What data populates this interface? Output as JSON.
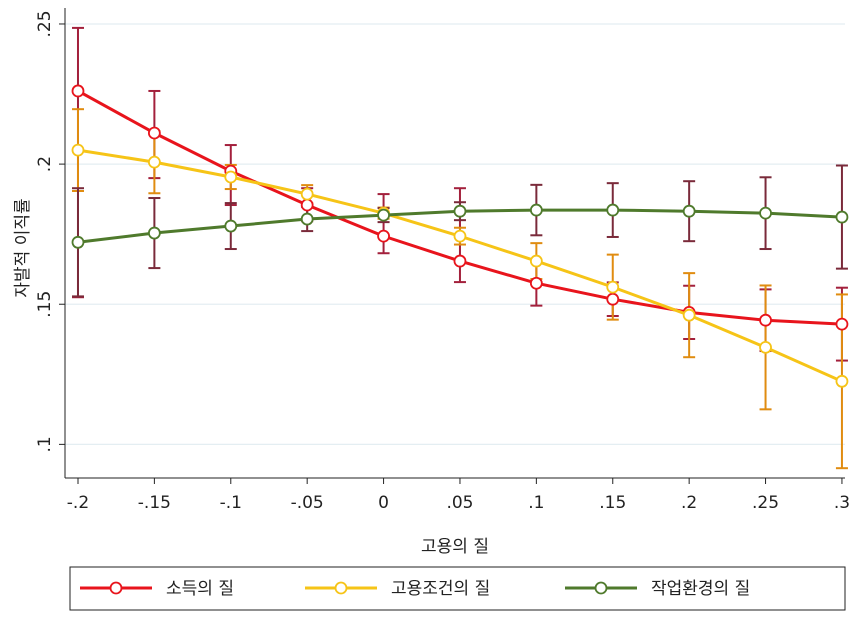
{
  "chart_data": {
    "type": "line",
    "xlabel": "고용의 질",
    "ylabel": "자발적 이직률",
    "x": [
      -0.2,
      -0.15,
      -0.1,
      -0.05,
      0,
      0.05,
      0.1,
      0.15,
      0.2,
      0.25,
      0.3
    ],
    "xlim": [
      -0.2085,
      0.302
    ],
    "ylim": [
      0.088,
      0.2557
    ],
    "xticks": [
      {
        "value": -0.2,
        "label": "-.2"
      },
      {
        "value": -0.15,
        "label": "-.15"
      },
      {
        "value": -0.1,
        "label": "-.1"
      },
      {
        "value": -0.05,
        "label": "-.05"
      },
      0,
      {
        "value": 0.05,
        "label": ".05"
      },
      {
        "value": 0.1,
        "label": ".1"
      },
      {
        "value": 0.15,
        "label": ".15"
      },
      {
        "value": 0.2,
        "label": ".2"
      },
      {
        "value": 0.25,
        "label": ".25"
      },
      {
        "value": 0.3,
        "label": ".3"
      }
    ],
    "yticks": [
      {
        "value": 0.1,
        "label": ".1"
      },
      {
        "value": 0.15,
        "label": ".15"
      },
      {
        "value": 0.2,
        "label": ".2"
      },
      {
        "value": 0.25,
        "label": ".25"
      }
    ],
    "grid": true,
    "series": [
      {
        "name": "소득의 질",
        "color": "#e8141c",
        "ci_color": "#a3203c",
        "values": [
          0.2261,
          0.2111,
          0.1975,
          0.1854,
          0.1743,
          0.1654,
          0.1575,
          0.1518,
          0.1471,
          0.1443,
          0.1429
        ],
        "ci_lower": [
          0.1525,
          0.195,
          0.1854,
          0.1796,
          0.1682,
          0.1579,
          0.1495,
          0.1458,
          0.1376,
          0.1333,
          0.1299
        ],
        "ci_upper": [
          0.2486,
          0.2261,
          0.2068,
          0.1914,
          0.1893,
          0.1914,
          0.1655,
          0.1578,
          0.1566,
          0.1553,
          0.1559
        ]
      },
      {
        "name": "고용조건의 질",
        "color": "#f6c417",
        "ci_color": "#e08c10",
        "values": [
          0.205,
          0.2007,
          0.1954,
          0.1893,
          0.1825,
          0.1743,
          0.1654,
          0.1561,
          0.1461,
          0.1346,
          0.1225
        ],
        "ci_lower": [
          0.1904,
          0.1896,
          0.1911,
          0.1861,
          0.1805,
          0.1713,
          0.159,
          0.1445,
          0.1311,
          0.1125,
          0.0915
        ],
        "ci_upper": [
          0.2196,
          0.2118,
          0.1997,
          0.1925,
          0.1845,
          0.1773,
          0.1718,
          0.1677,
          0.1611,
          0.1567,
          0.1535
        ]
      },
      {
        "name": "작업환경의 질",
        "color": "#4f7a2c",
        "ci_color": "#7a2a3a",
        "values": [
          0.1721,
          0.1754,
          0.1779,
          0.1804,
          0.1818,
          0.1832,
          0.1836,
          0.1836,
          0.1832,
          0.1825,
          0.1811
        ],
        "ci_lower": [
          0.1528,
          0.1629,
          0.1697,
          0.1761,
          0.1793,
          0.18,
          0.1746,
          0.174,
          0.1725,
          0.1697,
          0.1627
        ],
        "ci_upper": [
          0.1914,
          0.1879,
          0.1861,
          0.1847,
          0.1843,
          0.1864,
          0.1926,
          0.1932,
          0.1939,
          0.1953,
          0.1995
        ]
      }
    ]
  }
}
